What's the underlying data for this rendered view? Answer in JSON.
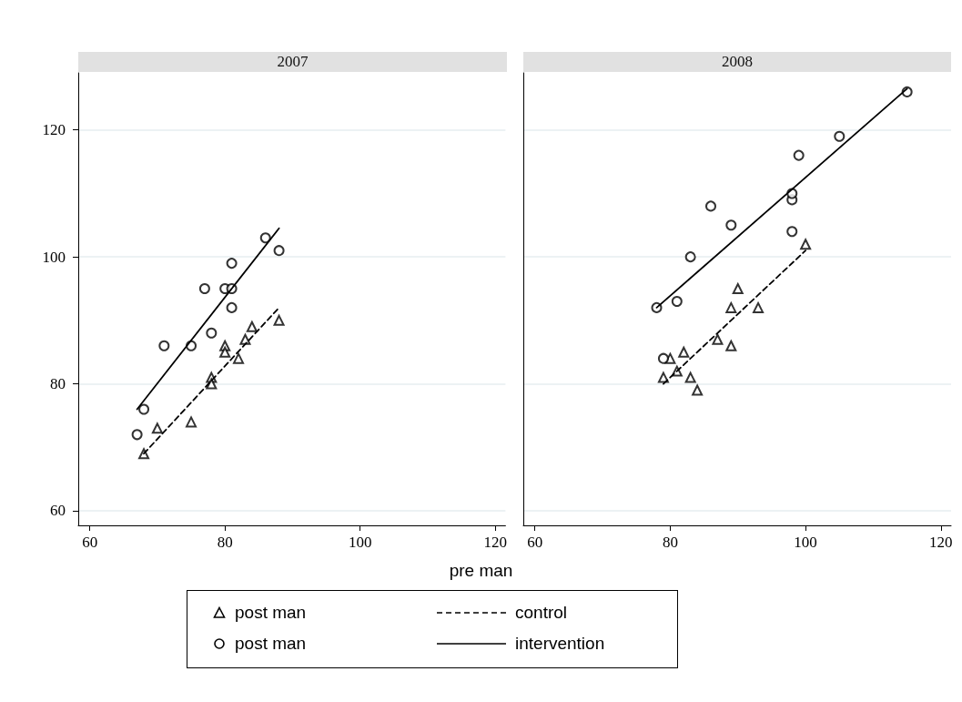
{
  "chart_data": [
    {
      "type": "scatter",
      "title": "2007",
      "xlabel": "pre man",
      "xlim": [
        58.3,
        121.5
      ],
      "xticks": [
        60,
        80,
        100,
        120
      ],
      "ylim": [
        57.7,
        129
      ],
      "yticks": [
        60,
        80,
        100,
        120
      ],
      "grid": "y",
      "legend": "bottom",
      "series": [
        {
          "name": "post man",
          "marker": "triangle",
          "color": "#000000",
          "x": [
            68,
            70,
            75,
            78,
            78,
            80,
            80,
            82,
            83,
            84,
            88
          ],
          "values": [
            69,
            73,
            74,
            81,
            80,
            86,
            85,
            84,
            87,
            89,
            90
          ]
        },
        {
          "name": "post man",
          "marker": "circle",
          "color": "#000000",
          "x": [
            67,
            68,
            71,
            75,
            77,
            78,
            80,
            81,
            81,
            81,
            86,
            88
          ],
          "values": [
            72,
            76,
            86,
            86,
            95,
            88,
            95,
            95,
            99,
            92,
            103,
            101
          ]
        },
        {
          "name": "control",
          "type": "line",
          "marker": "none",
          "line_style": "dashed",
          "color": "#000000",
          "x": [
            68,
            88
          ],
          "values": [
            69,
            92
          ]
        },
        {
          "name": "intervention",
          "type": "line",
          "marker": "none",
          "line_style": "solid",
          "color": "#000000",
          "x": [
            67,
            88
          ],
          "values": [
            76,
            104.5
          ]
        }
      ]
    },
    {
      "type": "scatter",
      "title": "2008",
      "xlim": [
        58.3,
        121.5
      ],
      "xticks": [
        60,
        80,
        100,
        120
      ],
      "ylim": [
        57.7,
        129
      ],
      "yticks": [
        60,
        80,
        100,
        120
      ],
      "grid": "y",
      "tick_labels": "x",
      "series": [
        {
          "marker": "triangle",
          "color": "#000000",
          "x": [
            79,
            80,
            81,
            82,
            83,
            84,
            87,
            89,
            89,
            90,
            93,
            100
          ],
          "values": [
            81,
            84,
            82,
            85,
            81,
            79,
            87,
            92,
            86,
            95,
            92,
            102
          ]
        },
        {
          "marker": "circle",
          "color": "#000000",
          "x": [
            78,
            79,
            81,
            83,
            86,
            89,
            98,
            98,
            98,
            99,
            105,
            115
          ],
          "values": [
            92,
            84,
            93,
            100,
            108,
            105,
            109,
            110,
            104,
            116,
            119,
            126
          ]
        },
        {
          "type": "line",
          "marker": "none",
          "line_style": "dashed",
          "color": "#000000",
          "x": [
            79,
            100
          ],
          "values": [
            80,
            101
          ]
        },
        {
          "type": "line",
          "marker": "none",
          "line_style": "solid",
          "color": "#000000",
          "x": [
            78,
            115
          ],
          "values": [
            92,
            126.5
          ]
        }
      ]
    }
  ]
}
